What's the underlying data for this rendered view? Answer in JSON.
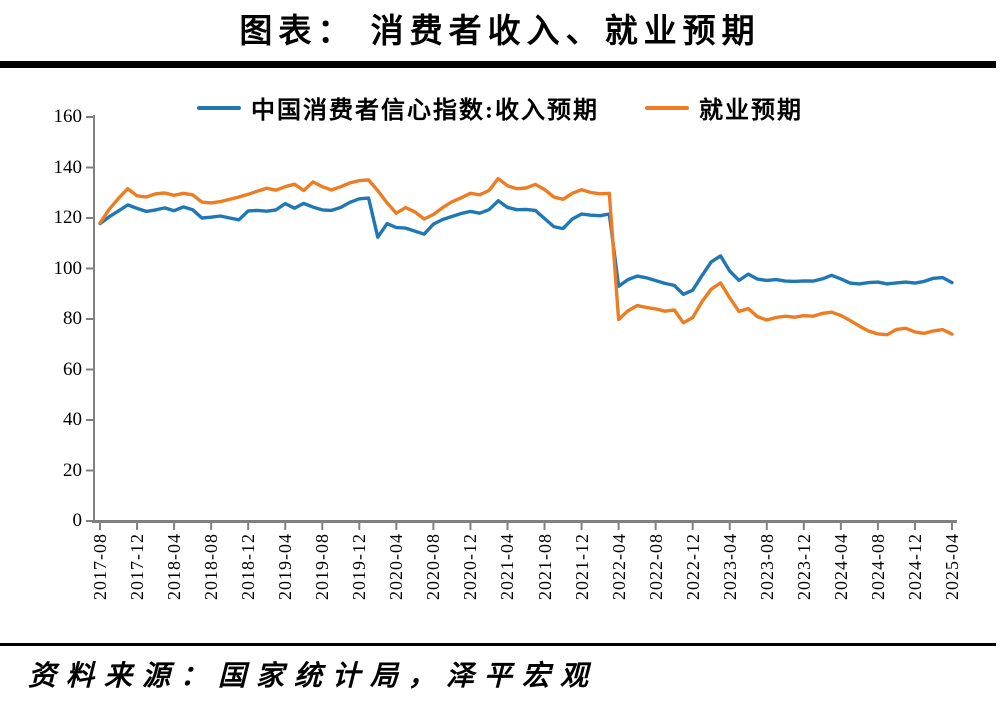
{
  "title": "图表： 消费者收入、就业预期",
  "source": "资料来源：国家统计局，泽平宏观",
  "colors": {
    "income": "#1f77b4",
    "employment": "#ed7d22",
    "axis": "#808080"
  },
  "legend": [
    {
      "label": "中国消费者信心指数:收入预期",
      "color": "#1f77b4"
    },
    {
      "label": "就业预期",
      "color": "#ed7d22"
    }
  ],
  "chart_data": {
    "type": "line",
    "title": "图表： 消费者收入、就业预期",
    "xlabel": "",
    "ylabel": "",
    "ylim": [
      0,
      160
    ],
    "y_ticks": [
      0,
      20,
      40,
      60,
      80,
      100,
      120,
      140,
      160
    ],
    "grid": false,
    "legend_position": "top",
    "x_start": "2017-08",
    "x_end": "2025-04",
    "x_frequency": "monthly",
    "x_tick_interval_months": 4,
    "x_tick_labels": [
      "2017-08",
      "2017-12",
      "2018-04",
      "2018-08",
      "2018-12",
      "2019-04",
      "2019-08",
      "2019-12",
      "2020-04",
      "2020-08",
      "2020-12",
      "2021-04",
      "2021-08",
      "2021-12",
      "2022-04",
      "2022-08",
      "2022-12",
      "2023-04",
      "2023-08",
      "2023-12",
      "2024-04",
      "2024-08",
      "2024-12",
      "2025-04"
    ],
    "series": [
      {
        "name": "中国消费者信心指数:收入预期",
        "color": "#1f77b4",
        "values": [
          117.8,
          120.5,
          122.8,
          125.2,
          123.8,
          122.6,
          123.2,
          124.0,
          122.9,
          124.4,
          123.3,
          120.0,
          120.3,
          120.8,
          120.0,
          119.3,
          122.8,
          123.0,
          122.7,
          123.2,
          125.7,
          123.9,
          125.8,
          124.3,
          123.2,
          123.0,
          124.2,
          126.2,
          127.6,
          127.9,
          112.4,
          117.8,
          116.2,
          116.0,
          114.8,
          113.6,
          117.6,
          119.4,
          120.6,
          121.8,
          122.6,
          121.9,
          123.3,
          126.8,
          124.2,
          123.3,
          123.4,
          123.0,
          119.8,
          116.6,
          115.8,
          119.6,
          121.6,
          121.1,
          120.9,
          121.6,
          93.0,
          95.6,
          97.0,
          96.3,
          95.2,
          94.1,
          93.3,
          89.8,
          91.4,
          97.2,
          102.6,
          105.0,
          99.0,
          95.3,
          97.8,
          95.8,
          95.3,
          95.6,
          95.0,
          94.9,
          95.1,
          95.0,
          95.9,
          97.3,
          95.9,
          94.2,
          93.9,
          94.4,
          94.6,
          93.9,
          94.3,
          94.6,
          94.2,
          94.9,
          96.1,
          96.4,
          94.4
        ]
      },
      {
        "name": "就业预期",
        "color": "#ed7d22",
        "values": [
          118.0,
          123.5,
          127.8,
          131.6,
          128.8,
          128.3,
          129.6,
          129.9,
          129.0,
          129.8,
          129.2,
          126.3,
          126.0,
          126.5,
          127.4,
          128.3,
          129.4,
          130.6,
          131.8,
          131.0,
          132.4,
          133.4,
          130.9,
          134.3,
          132.4,
          131.1,
          132.4,
          133.9,
          134.8,
          135.1,
          130.8,
          126.0,
          121.9,
          124.1,
          122.4,
          119.6,
          121.4,
          124.1,
          126.4,
          128.0,
          129.8,
          129.2,
          130.9,
          135.6,
          132.8,
          131.6,
          131.9,
          133.3,
          131.3,
          128.3,
          127.4,
          129.8,
          131.2,
          130.1,
          129.6,
          129.8,
          79.8,
          83.2,
          85.3,
          84.6,
          84.0,
          83.1,
          83.6,
          78.5,
          80.6,
          86.9,
          91.8,
          94.3,
          88.4,
          83.0,
          84.1,
          80.9,
          79.6,
          80.6,
          81.1,
          80.7,
          81.3,
          81.1,
          82.2,
          82.7,
          81.4,
          79.4,
          77.2,
          75.2,
          74.1,
          73.8,
          75.9,
          76.3,
          74.9,
          74.3,
          75.3,
          75.8,
          74.0
        ]
      }
    ]
  }
}
